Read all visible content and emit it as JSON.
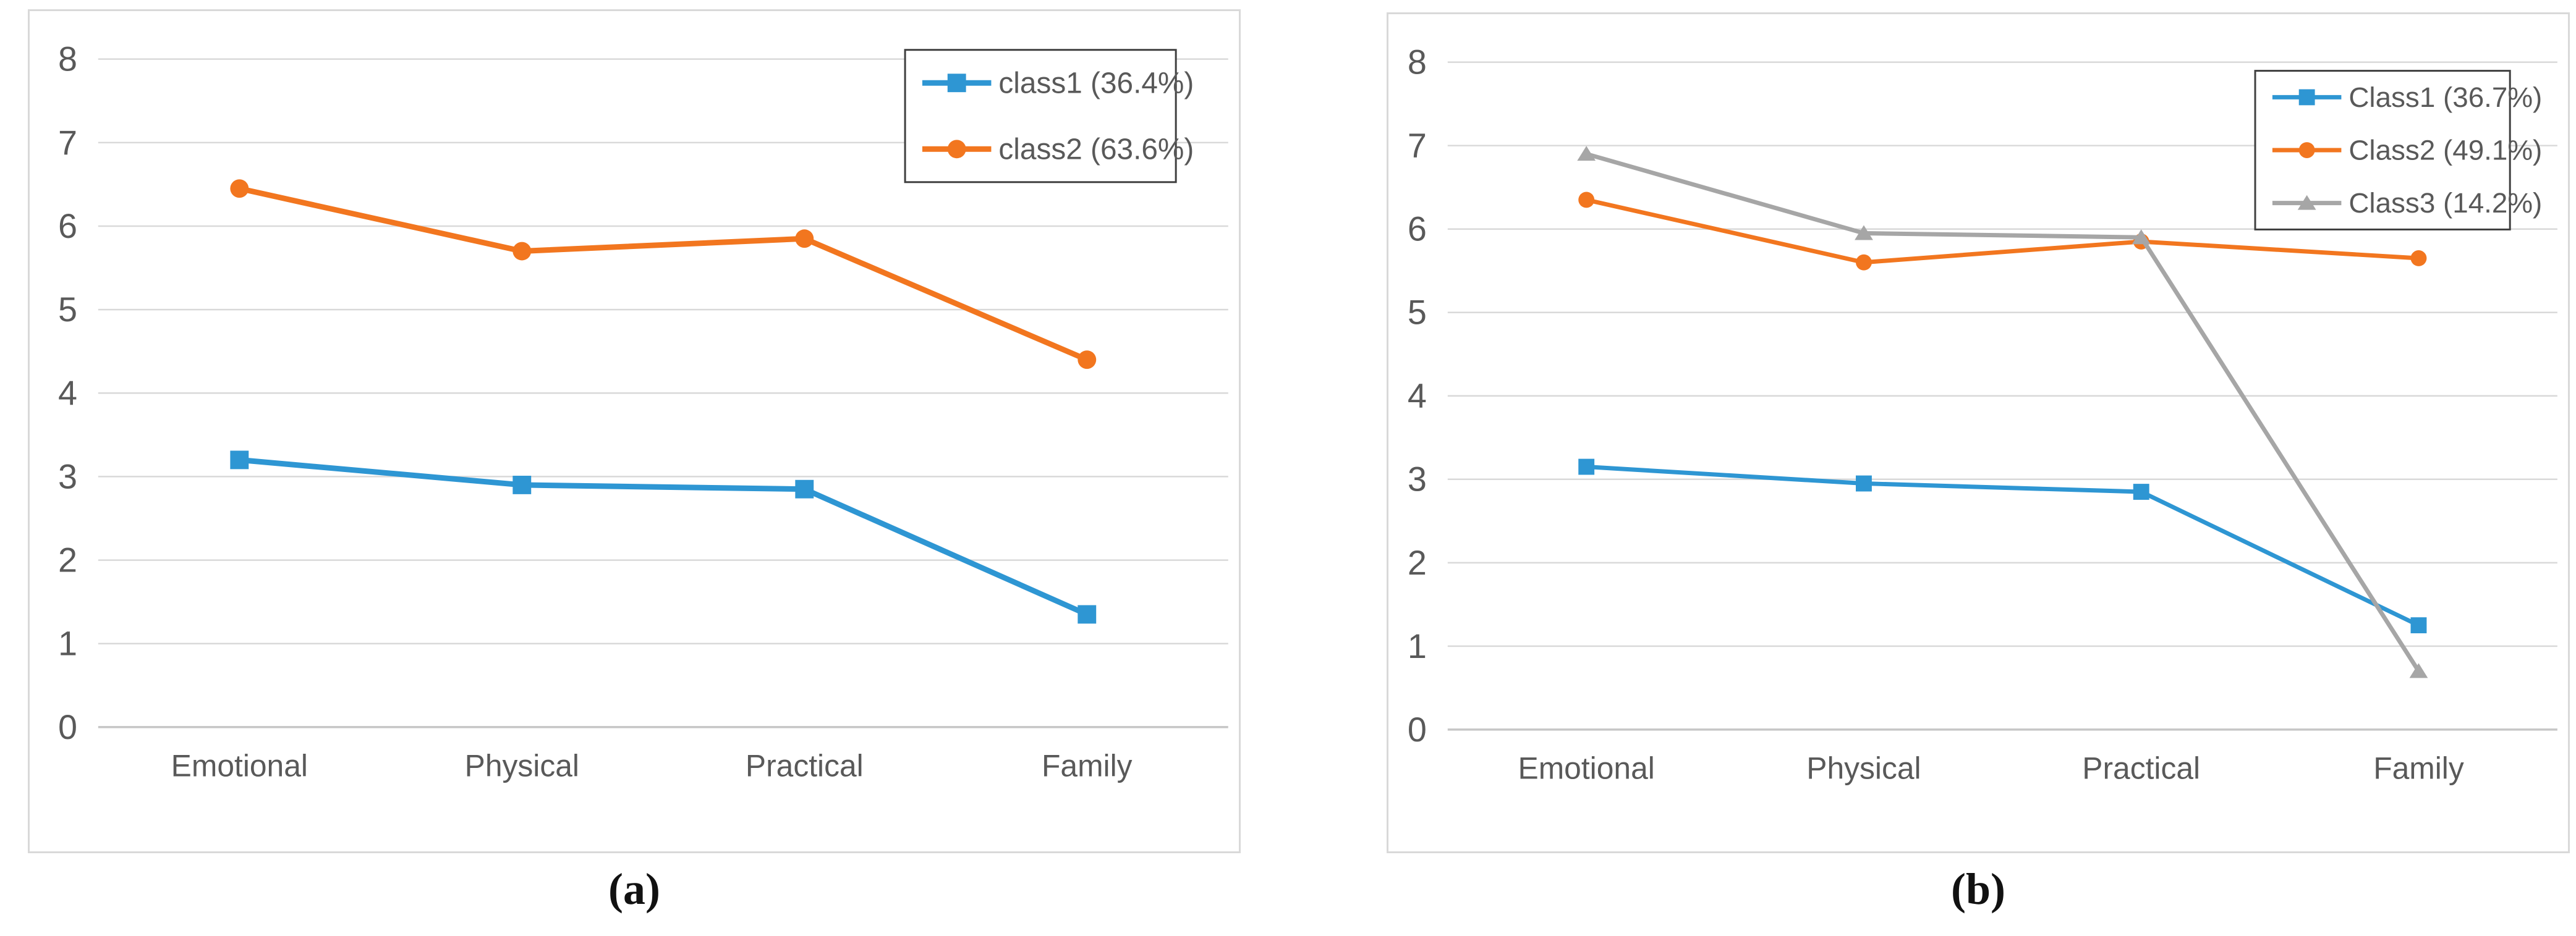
{
  "page": {
    "background": "#FFFFFF"
  },
  "captions": {
    "a": "(a)",
    "b": "(b)"
  },
  "colors": {
    "grid": "#D9D9D9",
    "axis_line": "#C6C6C6",
    "tick_label": "#595959",
    "category_label": "#595959",
    "panel_border": "#D9D9D9",
    "legend_border": "#3F3F3F",
    "legend_text": "#595959",
    "caption_text": "#111111",
    "series_blue": "#2E96D3",
    "series_orange": "#F2761F",
    "series_gray": "#A6A6A6"
  },
  "chart_data": [
    {
      "id": "a",
      "type": "line",
      "title": "",
      "xlabel": "",
      "ylabel": "",
      "categories": [
        "Emotional",
        "Physical",
        "Practical",
        "Family"
      ],
      "series": [
        {
          "name": "class1 (36.4%)",
          "marker": "square",
          "color": "#2E96D3",
          "values": [
            3.2,
            2.9,
            2.85,
            1.35
          ]
        },
        {
          "name": "class2 (63.6%)",
          "marker": "circle",
          "color": "#F2761F",
          "values": [
            6.45,
            5.7,
            5.85,
            4.4
          ]
        }
      ],
      "ylim": [
        0,
        8
      ],
      "ytick_step": 1,
      "grid": true,
      "legend_position": "top-right"
    },
    {
      "id": "b",
      "type": "line",
      "title": "",
      "xlabel": "",
      "ylabel": "",
      "categories": [
        "Emotional",
        "Physical",
        "Practical",
        "Family"
      ],
      "series": [
        {
          "name": "Class1 (36.7%)",
          "marker": "square",
          "color": "#2E96D3",
          "values": [
            3.15,
            2.95,
            2.85,
            1.25
          ]
        },
        {
          "name": "Class2 (49.1%)",
          "marker": "circle",
          "color": "#F2761F",
          "values": [
            6.35,
            5.6,
            5.85,
            5.65
          ]
        },
        {
          "name": "Class3 (14.2%)",
          "marker": "triangle",
          "color": "#A6A6A6",
          "values": [
            6.9,
            5.95,
            5.9,
            0.7
          ]
        }
      ],
      "ylim": [
        0,
        8
      ],
      "ytick_step": 1,
      "grid": true,
      "legend_position": "top-right"
    }
  ]
}
